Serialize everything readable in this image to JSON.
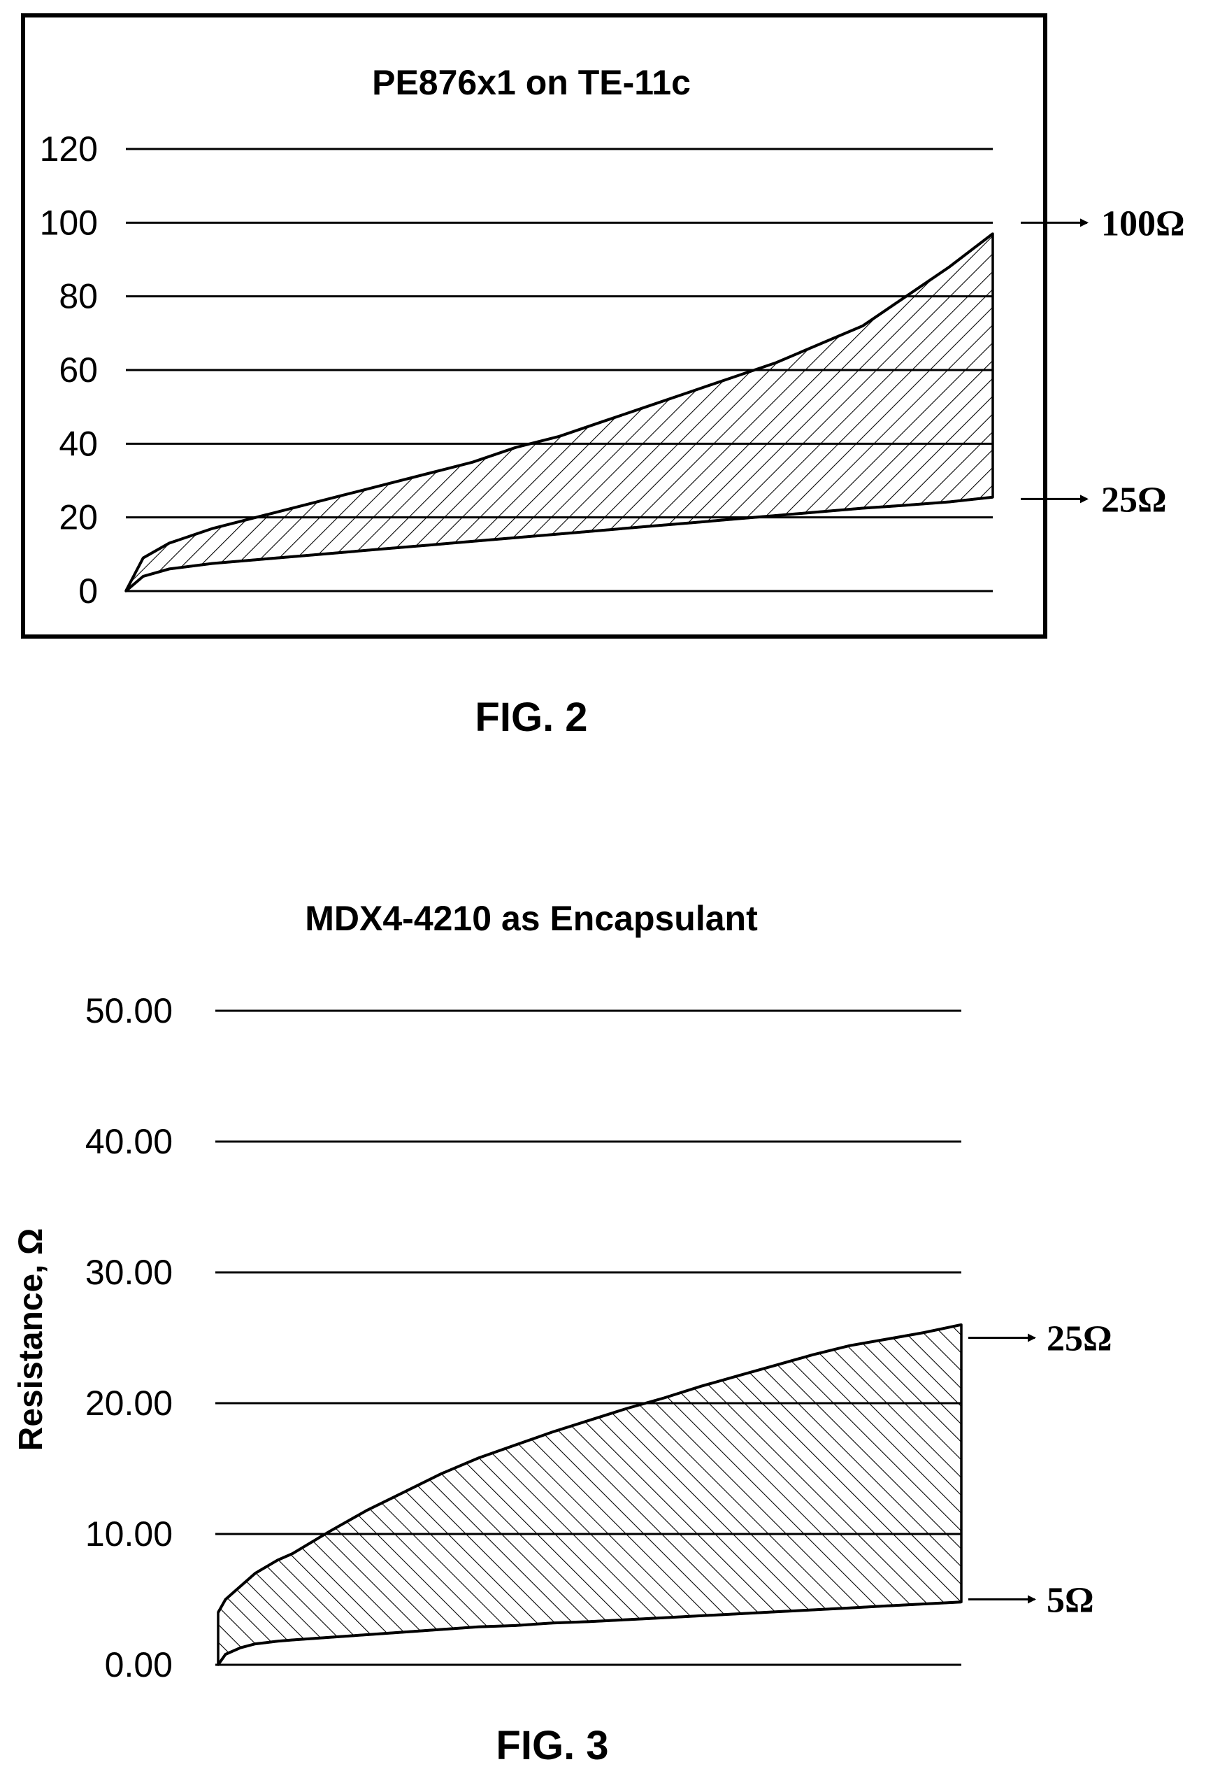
{
  "figures": [
    {
      "fig_label": "FIG. 2",
      "markers": [
        {
          "label": "100Ω",
          "value": 100
        },
        {
          "label": "25Ω",
          "value": 25
        }
      ]
    },
    {
      "fig_label": "FIG. 3",
      "markers": [
        {
          "label": "25Ω",
          "value": 25
        },
        {
          "label": "5Ω",
          "value": 5
        }
      ]
    }
  ],
  "chart_data": [
    {
      "type": "area",
      "title": "PE876x1 on TE-11c",
      "ylabel": "",
      "xlabel": "",
      "ylim": [
        0,
        120
      ],
      "yticks": [
        0,
        20,
        40,
        60,
        80,
        100,
        120
      ],
      "ytick_labels": [
        "0",
        "20",
        "40",
        "60",
        "80",
        "100",
        "120"
      ],
      "grid": true,
      "bordered": true,
      "hatch": "forward",
      "x": [
        0,
        2,
        5,
        10,
        15,
        20,
        25,
        30,
        35,
        40,
        45,
        50,
        55,
        60,
        65,
        70,
        75,
        80,
        85,
        90,
        95,
        100
      ],
      "series": [
        {
          "values": [
            0,
            9,
            13,
            17,
            20,
            23,
            26,
            29,
            32,
            35,
            39,
            42,
            46,
            50,
            54,
            58,
            62,
            67,
            72,
            80,
            88,
            97
          ]
        },
        {
          "values": [
            0,
            4,
            6,
            7.5,
            8.5,
            9.5,
            10.5,
            11.5,
            12.5,
            13.5,
            14.5,
            15.5,
            16.5,
            17.5,
            18.5,
            19.5,
            20.5,
            21.5,
            22.5,
            23.3,
            24.2,
            25.5
          ]
        }
      ]
    },
    {
      "type": "area",
      "title": "MDX4-4210 as Encapsulant",
      "ylabel": "Resistance, Ω",
      "xlabel": "",
      "ylim": [
        0,
        50
      ],
      "yticks": [
        0,
        10,
        20,
        30,
        40,
        50
      ],
      "ytick_labels": [
        "0.00",
        "10.00",
        "20.00",
        "30.00",
        "40.00",
        "50.00"
      ],
      "grid": true,
      "bordered": false,
      "hatch": "backward",
      "x": [
        0,
        1,
        3,
        5,
        8,
        10,
        15,
        20,
        25,
        30,
        35,
        40,
        45,
        50,
        55,
        60,
        65,
        70,
        75,
        80,
        85,
        90,
        95,
        100
      ],
      "series": [
        {
          "values": [
            4,
            5,
            6,
            7,
            8,
            8.5,
            10.2,
            11.8,
            13.2,
            14.6,
            15.8,
            16.8,
            17.8,
            18.7,
            19.6,
            20.4,
            21.3,
            22.1,
            22.9,
            23.7,
            24.4,
            24.9,
            25.4,
            26
          ]
        },
        {
          "values": [
            0,
            0.8,
            1.3,
            1.6,
            1.8,
            1.9,
            2.1,
            2.3,
            2.5,
            2.7,
            2.9,
            3.0,
            3.2,
            3.3,
            3.45,
            3.6,
            3.75,
            3.9,
            4.05,
            4.2,
            4.35,
            4.5,
            4.65,
            4.8
          ]
        }
      ]
    }
  ]
}
